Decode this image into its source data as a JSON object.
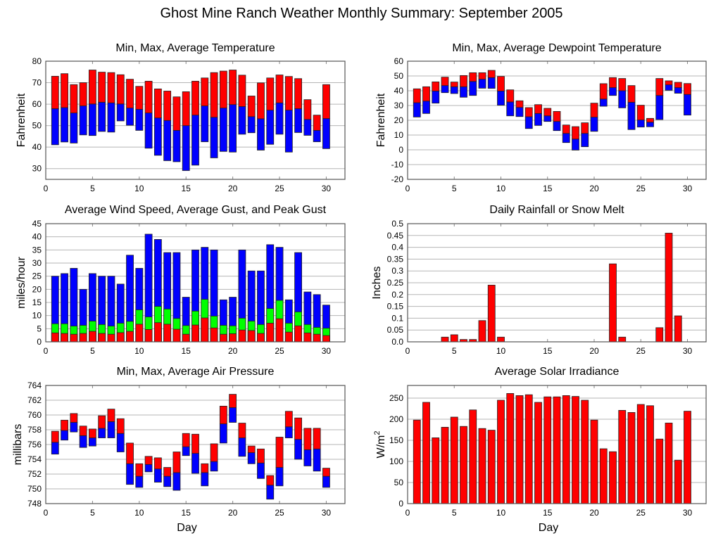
{
  "title": "Ghost Mine Ranch Weather Monthly Summary: September 2005",
  "colors": {
    "red": "#ff0000",
    "blue": "#0000ff",
    "green": "#00ff00"
  },
  "chart_data": [
    {
      "id": "temperature",
      "type": "bar",
      "subtype": "floating-range",
      "title": "Min, Max, Average Temperature",
      "xlabel": "",
      "ylabel": "Fahrenheit",
      "xlim": [
        0,
        32
      ],
      "ylim": [
        25,
        80
      ],
      "xticks": [
        0,
        5,
        10,
        15,
        20,
        25,
        30
      ],
      "yticks": [
        30,
        40,
        50,
        60,
        70,
        80
      ],
      "grid": true,
      "x": [
        1,
        2,
        3,
        4,
        5,
        6,
        7,
        8,
        9,
        10,
        11,
        12,
        13,
        14,
        15,
        16,
        17,
        18,
        19,
        20,
        21,
        22,
        23,
        24,
        25,
        26,
        27,
        28,
        29,
        30
      ],
      "series": [
        {
          "name": "Min",
          "values": [
            41.1,
            42.4,
            41.9,
            45.7,
            45.4,
            47.3,
            47.0,
            52.2,
            50.2,
            47.8,
            39.5,
            36.2,
            33.7,
            33.2,
            29.1,
            31.6,
            42.5,
            35.0,
            38.0,
            37.7,
            46.0,
            46.7,
            38.6,
            41.3,
            46.0,
            37.7,
            46.8,
            45.5,
            42.5,
            39.3
          ]
        },
        {
          "name": "Average",
          "values": [
            57.9,
            58.4,
            55.9,
            59.2,
            60.1,
            60.9,
            60.6,
            60.1,
            58.2,
            57.6,
            55.9,
            53.6,
            52.4,
            47.8,
            50.0,
            54.9,
            59.2,
            53.9,
            58.2,
            59.8,
            58.9,
            54.2,
            53.2,
            57.2,
            60.6,
            57.2,
            57.9,
            52.9,
            47.8,
            53.3
          ]
        },
        {
          "name": "Max",
          "values": [
            73.0,
            74.2,
            69.1,
            70.0,
            75.9,
            74.9,
            74.7,
            73.7,
            71.6,
            68.3,
            70.7,
            67.1,
            66.1,
            63.4,
            65.8,
            70.7,
            72.2,
            74.7,
            75.4,
            75.9,
            73.5,
            63.8,
            69.9,
            72.2,
            73.6,
            72.9,
            71.9,
            62.1,
            54.9,
            69.1
          ]
        }
      ]
    },
    {
      "id": "dewpoint",
      "type": "bar",
      "subtype": "floating-range",
      "title": "Min, Max, Average Dewpoint Temperature",
      "xlabel": "",
      "ylabel": "Fahrenheit",
      "xlim": [
        0,
        32
      ],
      "ylim": [
        -20,
        60
      ],
      "xticks": [
        0,
        5,
        10,
        15,
        20,
        25,
        30
      ],
      "yticks": [
        -20,
        -10,
        0,
        10,
        20,
        30,
        40,
        50,
        60
      ],
      "grid": true,
      "x": [
        1,
        2,
        3,
        4,
        5,
        6,
        7,
        8,
        9,
        10,
        11,
        12,
        13,
        14,
        15,
        16,
        17,
        18,
        19,
        20,
        21,
        22,
        23,
        24,
        25,
        26,
        27,
        28,
        29,
        30
      ],
      "series": [
        {
          "name": "Min",
          "values": [
            22.2,
            24.6,
            31.6,
            38.7,
            38.1,
            35.6,
            36.8,
            41.7,
            41.6,
            30.2,
            23.0,
            22.5,
            14.4,
            16.5,
            19.2,
            13.0,
            4.9,
            -0.2,
            2.1,
            12.5,
            29.5,
            36.8,
            28.4,
            13.7,
            15.4,
            15.6,
            20.5,
            40.3,
            38.3,
            23.5
          ]
        },
        {
          "name": "Average",
          "values": [
            31.9,
            33.0,
            39.8,
            43.5,
            42.7,
            42.7,
            46.3,
            47.8,
            48.9,
            39.8,
            32.4,
            28.7,
            22.4,
            24.6,
            23.0,
            19.2,
            11.1,
            7.3,
            11.1,
            22.1,
            34.4,
            42.1,
            40.0,
            32.2,
            20.2,
            18.7,
            36.8,
            44.0,
            42.1,
            37.5
          ]
        },
        {
          "name": "Max",
          "values": [
            41.3,
            42.7,
            46.0,
            49.2,
            45.9,
            50.3,
            52.2,
            52.2,
            53.8,
            49.7,
            40.6,
            33.2,
            28.6,
            30.6,
            28.1,
            26.0,
            16.8,
            15.7,
            18.3,
            31.6,
            44.8,
            48.9,
            48.3,
            43.5,
            30.2,
            21.3,
            48.3,
            46.7,
            45.7,
            44.9
          ]
        }
      ]
    },
    {
      "id": "wind",
      "type": "bar",
      "subtype": "overlaid",
      "title": "Average Wind Speed, Average Gust, and Peak Gust",
      "xlabel": "",
      "ylabel": "miles/hour",
      "xlim": [
        0,
        32
      ],
      "ylim": [
        0,
        45
      ],
      "xticks": [
        0,
        5,
        10,
        15,
        20,
        25,
        30
      ],
      "yticks": [
        0,
        5,
        10,
        15,
        20,
        25,
        30,
        35,
        40,
        45
      ],
      "grid": true,
      "x": [
        1,
        2,
        3,
        4,
        5,
        6,
        7,
        8,
        9,
        10,
        11,
        12,
        13,
        14,
        15,
        16,
        17,
        18,
        19,
        20,
        21,
        22,
        23,
        24,
        25,
        26,
        27,
        28,
        29,
        30
      ],
      "series": [
        {
          "name": "Peak Gust",
          "color": "blue",
          "values": [
            25,
            26,
            28,
            20,
            26,
            25,
            25,
            22,
            33,
            28,
            41,
            39,
            34,
            34,
            17,
            35,
            36,
            35,
            16,
            17,
            35,
            27,
            27,
            37,
            36,
            16,
            34,
            19,
            18,
            14
          ]
        },
        {
          "name": "Average Gust",
          "color": "green",
          "values": [
            6.9,
            6.9,
            6.0,
            6.3,
            7.9,
            6.6,
            6.0,
            7.1,
            7.8,
            12.2,
            9.5,
            13.5,
            12.5,
            8.9,
            6.2,
            11.7,
            16.2,
            9.8,
            6.3,
            6.1,
            9.0,
            7.9,
            6.6,
            12.7,
            15.8,
            7.1,
            11.4,
            6.6,
            5.5,
            5.2
          ]
        },
        {
          "name": "Average Wind Speed",
          "color": "red",
          "values": [
            3.4,
            3.2,
            2.9,
            3.2,
            4.0,
            3.2,
            2.9,
            3.5,
            4.0,
            6.7,
            4.7,
            7.3,
            6.7,
            4.8,
            2.9,
            6.4,
            9.1,
            5.3,
            2.9,
            3.1,
            4.5,
            4.3,
            3.2,
            7.1,
            8.8,
            3.7,
            6.1,
            3.4,
            2.9,
            2.4
          ]
        }
      ]
    },
    {
      "id": "rainfall",
      "type": "bar",
      "title": "Daily Rainfall or Snow Melt",
      "xlabel": "",
      "ylabel": "Inches",
      "xlim": [
        0,
        32
      ],
      "ylim": [
        0,
        0.5
      ],
      "xticks": [
        0,
        5,
        10,
        15,
        20,
        25,
        30
      ],
      "yticks": [
        0,
        0.05,
        0.1,
        0.15,
        0.2,
        0.25,
        0.3,
        0.35,
        0.4,
        0.45,
        0.5
      ],
      "ytick_labels": [
        "0.0",
        "0.05",
        "0.1",
        "0.15",
        "0.2",
        "0.25",
        "0.3",
        "0.35",
        "0.4",
        "0.45",
        "0.5"
      ],
      "grid": true,
      "x": [
        1,
        2,
        3,
        4,
        5,
        6,
        7,
        8,
        9,
        10,
        11,
        12,
        13,
        14,
        15,
        16,
        17,
        18,
        19,
        20,
        21,
        22,
        23,
        24,
        25,
        26,
        27,
        28,
        29,
        30
      ],
      "values": [
        0,
        0,
        0,
        0.02,
        0.03,
        0.01,
        0.01,
        0.09,
        0.24,
        0.02,
        0,
        0,
        0,
        0,
        0,
        0,
        0,
        0,
        0,
        0,
        0,
        0.33,
        0.02,
        0,
        0,
        0,
        0.06,
        0.46,
        0.11,
        0
      ]
    },
    {
      "id": "pressure",
      "type": "bar",
      "subtype": "floating-range",
      "title": "Min, Max, Average Air Pressure",
      "xlabel": "Day",
      "ylabel": "millibars",
      "xlim": [
        0,
        32
      ],
      "ylim": [
        748,
        764
      ],
      "xticks": [
        0,
        5,
        10,
        15,
        20,
        25,
        30
      ],
      "yticks": [
        748,
        750,
        752,
        754,
        756,
        758,
        760,
        762,
        764
      ],
      "grid": true,
      "x": [
        1,
        2,
        3,
        4,
        5,
        6,
        7,
        8,
        9,
        10,
        11,
        12,
        13,
        14,
        15,
        16,
        17,
        18,
        19,
        20,
        21,
        22,
        23,
        24,
        25,
        26,
        27,
        28,
        29,
        30
      ],
      "series": [
        {
          "name": "Min",
          "values": [
            754.7,
            756.6,
            757.7,
            755.6,
            755.8,
            756.9,
            756.9,
            755.0,
            750.6,
            750.2,
            752.3,
            750.9,
            750.3,
            749.8,
            754.5,
            752.1,
            750.4,
            752.4,
            756.2,
            759.0,
            754.4,
            753.4,
            751.4,
            748.6,
            750.4,
            756.9,
            754.0,
            753.1,
            752.4,
            750.2
          ]
        },
        {
          "name": "Average",
          "values": [
            756.3,
            757.9,
            759.0,
            757.2,
            756.9,
            758.2,
            759.1,
            757.5,
            753.4,
            751.7,
            753.3,
            752.7,
            751.7,
            752.2,
            755.7,
            754.8,
            752.2,
            753.7,
            758.8,
            761.0,
            756.9,
            754.9,
            753.5,
            750.5,
            752.9,
            758.4,
            756.7,
            755.3,
            755.4,
            751.7
          ]
        },
        {
          "name": "Max",
          "values": [
            757.8,
            759.3,
            760.2,
            758.5,
            758.1,
            759.9,
            760.8,
            759.5,
            756.2,
            753.4,
            754.4,
            754.2,
            752.9,
            755.0,
            757.5,
            757.4,
            753.4,
            756.1,
            761.2,
            762.8,
            758.9,
            755.8,
            755.4,
            751.8,
            757.0,
            760.5,
            759.6,
            758.2,
            758.2,
            752.8
          ]
        }
      ]
    },
    {
      "id": "solar",
      "type": "bar",
      "title": "Average Solar Irradiance",
      "xlabel": "Day",
      "ylabel": "W/m",
      "ylabel_sup": "2",
      "xlim": [
        0,
        32
      ],
      "ylim": [
        0,
        280
      ],
      "xticks": [
        0,
        5,
        10,
        15,
        20,
        25,
        30
      ],
      "yticks": [
        0,
        50,
        100,
        150,
        200,
        250
      ],
      "grid": true,
      "x": [
        1,
        2,
        3,
        4,
        5,
        6,
        7,
        8,
        9,
        10,
        11,
        12,
        13,
        14,
        15,
        16,
        17,
        18,
        19,
        20,
        21,
        22,
        23,
        24,
        25,
        26,
        27,
        28,
        29,
        30
      ],
      "values": [
        198,
        240,
        156,
        181,
        205,
        183,
        222,
        178,
        174,
        245,
        261,
        256,
        258,
        240,
        253,
        253,
        256,
        254,
        245,
        198,
        130,
        123,
        221,
        216,
        235,
        232,
        153,
        191,
        103,
        219
      ]
    }
  ]
}
